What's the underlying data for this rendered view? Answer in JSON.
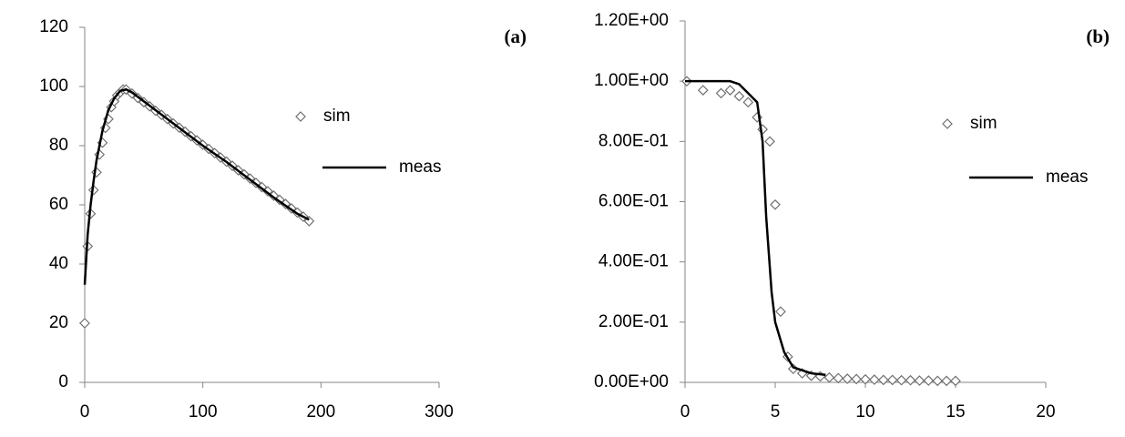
{
  "chart_data": [
    {
      "type": "scatter",
      "title": "(a)",
      "legend": "right",
      "xlim": [
        0,
        300
      ],
      "xticks": [
        0,
        100,
        200,
        300
      ],
      "ylim": [
        0,
        120
      ],
      "yticks": [
        0,
        20,
        40,
        60,
        80,
        100,
        120
      ],
      "series": [
        {
          "name": "sim",
          "color": "#707070",
          "style": "markers",
          "x": [
            0,
            2.5,
            5,
            7.5,
            10,
            12.5,
            15,
            17.5,
            20,
            22.5,
            25,
            27.5,
            30,
            32.5,
            35,
            40,
            45,
            50,
            55,
            60,
            65,
            70,
            75,
            80,
            85,
            90,
            95,
            100,
            105,
            110,
            115,
            120,
            125,
            130,
            135,
            140,
            145,
            150,
            155,
            160,
            165,
            170,
            175,
            180,
            185,
            190
          ],
          "values": [
            20,
            46,
            57,
            65,
            71,
            77,
            81,
            86,
            89,
            93,
            95,
            97,
            98,
            99,
            99,
            97.6,
            96.1,
            94.7,
            93.3,
            91.8,
            90.4,
            89,
            87.5,
            86.1,
            84.7,
            83.2,
            81.8,
            80.3,
            78.9,
            77.5,
            76,
            74.6,
            73.2,
            71.7,
            70.3,
            68.9,
            67.4,
            66,
            64.6,
            63.1,
            61.7,
            60.3,
            58.8,
            57.4,
            56,
            54.5
          ]
        },
        {
          "name": "meas",
          "color": "#000000",
          "style": "line",
          "x": [
            0,
            2.5,
            5,
            7.5,
            10,
            15,
            20,
            25,
            30,
            35,
            40,
            60,
            80,
            100,
            120,
            140,
            160,
            180,
            190
          ],
          "values": [
            33,
            50,
            60,
            68,
            75,
            85,
            92,
            96,
            98.5,
            99,
            98,
            92,
            86,
            80,
            74.5,
            68.5,
            62.5,
            57,
            55
          ]
        }
      ]
    },
    {
      "type": "scatter",
      "title": "(b)",
      "legend": "right",
      "xlim": [
        0,
        20
      ],
      "xticks": [
        0,
        5,
        10,
        15,
        20
      ],
      "ylim": [
        0,
        1.2
      ],
      "yticks": [
        {
          "value": 0,
          "label": "0.00E+00"
        },
        {
          "value": 0.2,
          "label": "2.00E-01"
        },
        {
          "value": 0.4,
          "label": "4.00E-01"
        },
        {
          "value": 0.6,
          "label": "6.00E-01"
        },
        {
          "value": 0.8,
          "label": "8.00E-01"
        },
        {
          "value": 1,
          "label": "1.00E+00"
        },
        {
          "value": 1.2,
          "label": "1.20E+00"
        }
      ],
      "series": [
        {
          "name": "sim",
          "color": "#707070",
          "style": "markers",
          "x": [
            0.1,
            1,
            2,
            2.5,
            3,
            3.5,
            4,
            4.3,
            4.7,
            5,
            5.3,
            5.7,
            6,
            6.5,
            7,
            7.5,
            8,
            8.5,
            9,
            9.5,
            10,
            10.5,
            11,
            11.5,
            12,
            12.5,
            13,
            13.5,
            14,
            14.5,
            15
          ],
          "values": [
            1,
            0.97,
            0.96,
            0.97,
            0.95,
            0.93,
            0.88,
            0.84,
            0.8,
            0.59,
            0.235,
            0.085,
            0.045,
            0.03,
            0.022,
            0.02,
            0.016,
            0.014,
            0.012,
            0.011,
            0.01,
            0.009,
            0.008,
            0.008,
            0.007,
            0.007,
            0.006,
            0.006,
            0.005,
            0.005,
            0.005
          ]
        },
        {
          "name": "meas",
          "color": "#000000",
          "style": "line",
          "x": [
            0,
            2.5,
            3,
            3.5,
            4,
            4.3,
            4.5,
            4.8,
            5,
            5.5,
            6,
            7,
            7.8
          ],
          "values": [
            1,
            1,
            0.99,
            0.96,
            0.93,
            0.8,
            0.55,
            0.3,
            0.2,
            0.1,
            0.05,
            0.03,
            0.025
          ]
        }
      ]
    }
  ]
}
